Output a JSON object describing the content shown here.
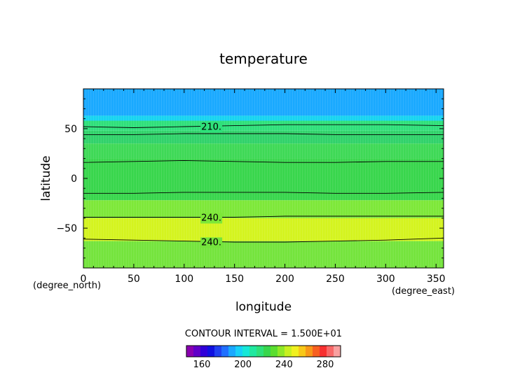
{
  "chart_data": {
    "type": "heatmap",
    "title": "temperature",
    "xlabel": "longitude",
    "ylabel": "latitude",
    "xunit": "(degree_east)",
    "yunit": "(degree_north)",
    "xlim": [
      0,
      357.5
    ],
    "ylim": [
      -90,
      90
    ],
    "xticks": [
      0,
      50,
      100,
      150,
      200,
      250,
      300,
      350
    ],
    "yticks": [
      50,
      0,
      -50
    ],
    "bands": [
      {
        "lat_from": 90,
        "lat_to": 63,
        "value": 190,
        "color": "#19a9ff"
      },
      {
        "lat_from": 63,
        "lat_to": 58,
        "value": 200,
        "color": "#16d4f0"
      },
      {
        "lat_from": 58,
        "lat_to": 48,
        "value": 215,
        "color": "#2ee07a"
      },
      {
        "lat_from": 48,
        "lat_to": 35,
        "value": 222,
        "color": "#30d26a"
      },
      {
        "lat_from": 35,
        "lat_to": 20,
        "value": 228,
        "color": "#3ed956"
      },
      {
        "lat_from": 20,
        "lat_to": -22,
        "value": 232,
        "color": "#38d64c"
      },
      {
        "lat_from": -22,
        "lat_to": -40,
        "value": 240,
        "color": "#7de838"
      },
      {
        "lat_from": -40,
        "lat_to": -63,
        "value": 250,
        "color": "#d4f41e"
      },
      {
        "lat_from": -63,
        "lat_to": -90,
        "value": 240,
        "color": "#74e43c"
      }
    ],
    "contours": [
      {
        "lats": [
          52,
          51,
          52,
          53,
          54,
          54,
          54,
          53
        ],
        "label": "210."
      },
      {
        "lats": [
          44,
          44,
          45,
          45,
          45,
          44,
          44,
          44
        ],
        "label": ""
      },
      {
        "lats": [
          16,
          17,
          18,
          17,
          16,
          16,
          17,
          17
        ],
        "label": ""
      },
      {
        "lats": [
          -15,
          -15,
          -14,
          -14,
          -14,
          -15,
          -15,
          -14
        ],
        "label": ""
      },
      {
        "lats": [
          -39,
          -39,
          -39,
          -39,
          -38,
          -38,
          -38,
          -38
        ],
        "label": "240."
      },
      {
        "lats": [
          -61,
          -62,
          -63,
          -64,
          -64,
          -63,
          -62,
          -60
        ],
        "label": "240."
      }
    ],
    "contour_lons": [
      0,
      50,
      100,
      150,
      200,
      250,
      300,
      357.5
    ],
    "contour_interval_text": "CONTOUR INTERVAL = 1.500E+01",
    "colorbar": {
      "colors": [
        "#8a00b0",
        "#6000c8",
        "#3000d8",
        "#1010e0",
        "#2040f0",
        "#2070ff",
        "#1aa8ff",
        "#18d0f8",
        "#16e8d8",
        "#20e8a0",
        "#2ee07a",
        "#38d64c",
        "#5ade30",
        "#90e828",
        "#c8f020",
        "#f0f020",
        "#f8c818",
        "#f89818",
        "#f86020",
        "#f83030",
        "#f86868",
        "#f8a0a0"
      ],
      "vmin": 145,
      "vmax": 295,
      "labels": [
        "160",
        "200",
        "240",
        "280"
      ],
      "label_values": [
        160,
        200,
        240,
        280
      ]
    }
  }
}
